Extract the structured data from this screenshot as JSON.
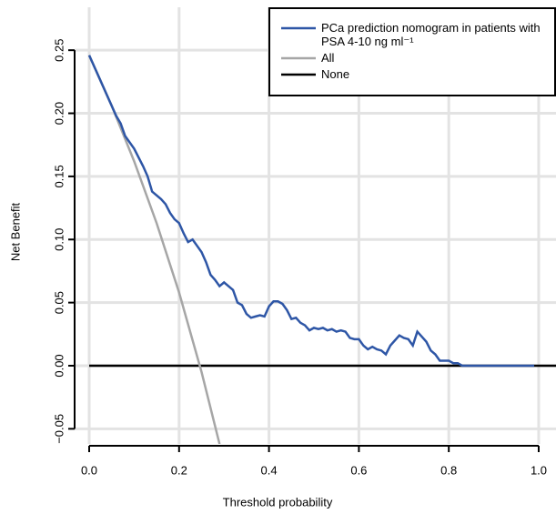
{
  "chart_data": {
    "type": "line",
    "x_label": "Threshold probability",
    "y_label": "Net Benefit",
    "xlim": [
      -0.0324,
      1.0385
    ],
    "ylim": [
      -0.062,
      0.284
    ],
    "xticks": [
      {
        "value": 0,
        "label": "0.0"
      },
      {
        "value": 0.2,
        "label": "0.2"
      },
      {
        "value": 0.4,
        "label": "0.4"
      },
      {
        "value": 0.6,
        "label": "0.6"
      },
      {
        "value": 0.8,
        "label": "0.8"
      },
      {
        "value": 1,
        "label": "1.0"
      }
    ],
    "yticks": [
      {
        "value": -0.05,
        "label": "−0.05"
      },
      {
        "value": 0,
        "label": "0.00"
      },
      {
        "value": 0.05,
        "label": "0.05"
      },
      {
        "value": 0.1,
        "label": "0.10"
      },
      {
        "value": 0.15,
        "label": "0.15"
      },
      {
        "value": 0.2,
        "label": "0.20"
      },
      {
        "value": 0.25,
        "label": "0.25"
      }
    ],
    "grid": true,
    "legend": "top-right",
    "series": [
      {
        "name": "PCa prediction nomogram in patients with PSA 4-10 ng ml⁻¹",
        "color": "#2e56a6",
        "x": [
          0,
          0.02,
          0.04,
          0.06,
          0.07,
          0.08,
          0.1,
          0.12,
          0.13,
          0.14,
          0.16,
          0.17,
          0.18,
          0.19,
          0.2,
          0.21,
          0.22,
          0.23,
          0.24,
          0.25,
          0.26,
          0.27,
          0.28,
          0.29,
          0.3,
          0.31,
          0.32,
          0.33,
          0.34,
          0.35,
          0.36,
          0.37,
          0.38,
          0.39,
          0.4,
          0.41,
          0.42,
          0.43,
          0.44,
          0.45,
          0.46,
          0.47,
          0.48,
          0.49,
          0.5,
          0.51,
          0.52,
          0.53,
          0.54,
          0.55,
          0.56,
          0.57,
          0.58,
          0.59,
          0.6,
          0.61,
          0.62,
          0.63,
          0.64,
          0.65,
          0.66,
          0.67,
          0.68,
          0.69,
          0.7,
          0.71,
          0.72,
          0.73,
          0.74,
          0.75,
          0.76,
          0.77,
          0.78,
          0.79,
          0.8,
          0.81,
          0.82,
          0.83,
          0.99
        ],
        "values": [
          0.246,
          0.23,
          0.214,
          0.198,
          0.192,
          0.182,
          0.172,
          0.158,
          0.15,
          0.138,
          0.132,
          0.128,
          0.121,
          0.116,
          0.113,
          0.105,
          0.098,
          0.1,
          0.095,
          0.09,
          0.082,
          0.072,
          0.068,
          0.063,
          0.066,
          0.063,
          0.06,
          0.05,
          0.048,
          0.041,
          0.038,
          0.039,
          0.04,
          0.039,
          0.047,
          0.051,
          0.051,
          0.049,
          0.044,
          0.037,
          0.038,
          0.034,
          0.032,
          0.028,
          0.03,
          0.029,
          0.03,
          0.028,
          0.029,
          0.027,
          0.028,
          0.027,
          0.022,
          0.021,
          0.021,
          0.016,
          0.013,
          0.015,
          0.013,
          0.012,
          0.009,
          0.016,
          0.02,
          0.024,
          0.022,
          0.021,
          0.016,
          0.027,
          0.023,
          0.019,
          0.012,
          0.009,
          0.004,
          0.004,
          0.004,
          0.002,
          0.002,
          0,
          0
        ]
      },
      {
        "name": "All",
        "color": "#a6a6a6",
        "x": [
          0,
          0.05,
          0.1,
          0.15,
          0.2,
          0.25,
          0.29
        ],
        "values": [
          0.246,
          0.206,
          0.162,
          0.113,
          0.058,
          -0.005,
          -0.062
        ]
      },
      {
        "name": "None",
        "color": "#000000",
        "x": [
          0,
          1.0385
        ],
        "values": [
          0,
          0
        ]
      }
    ]
  }
}
